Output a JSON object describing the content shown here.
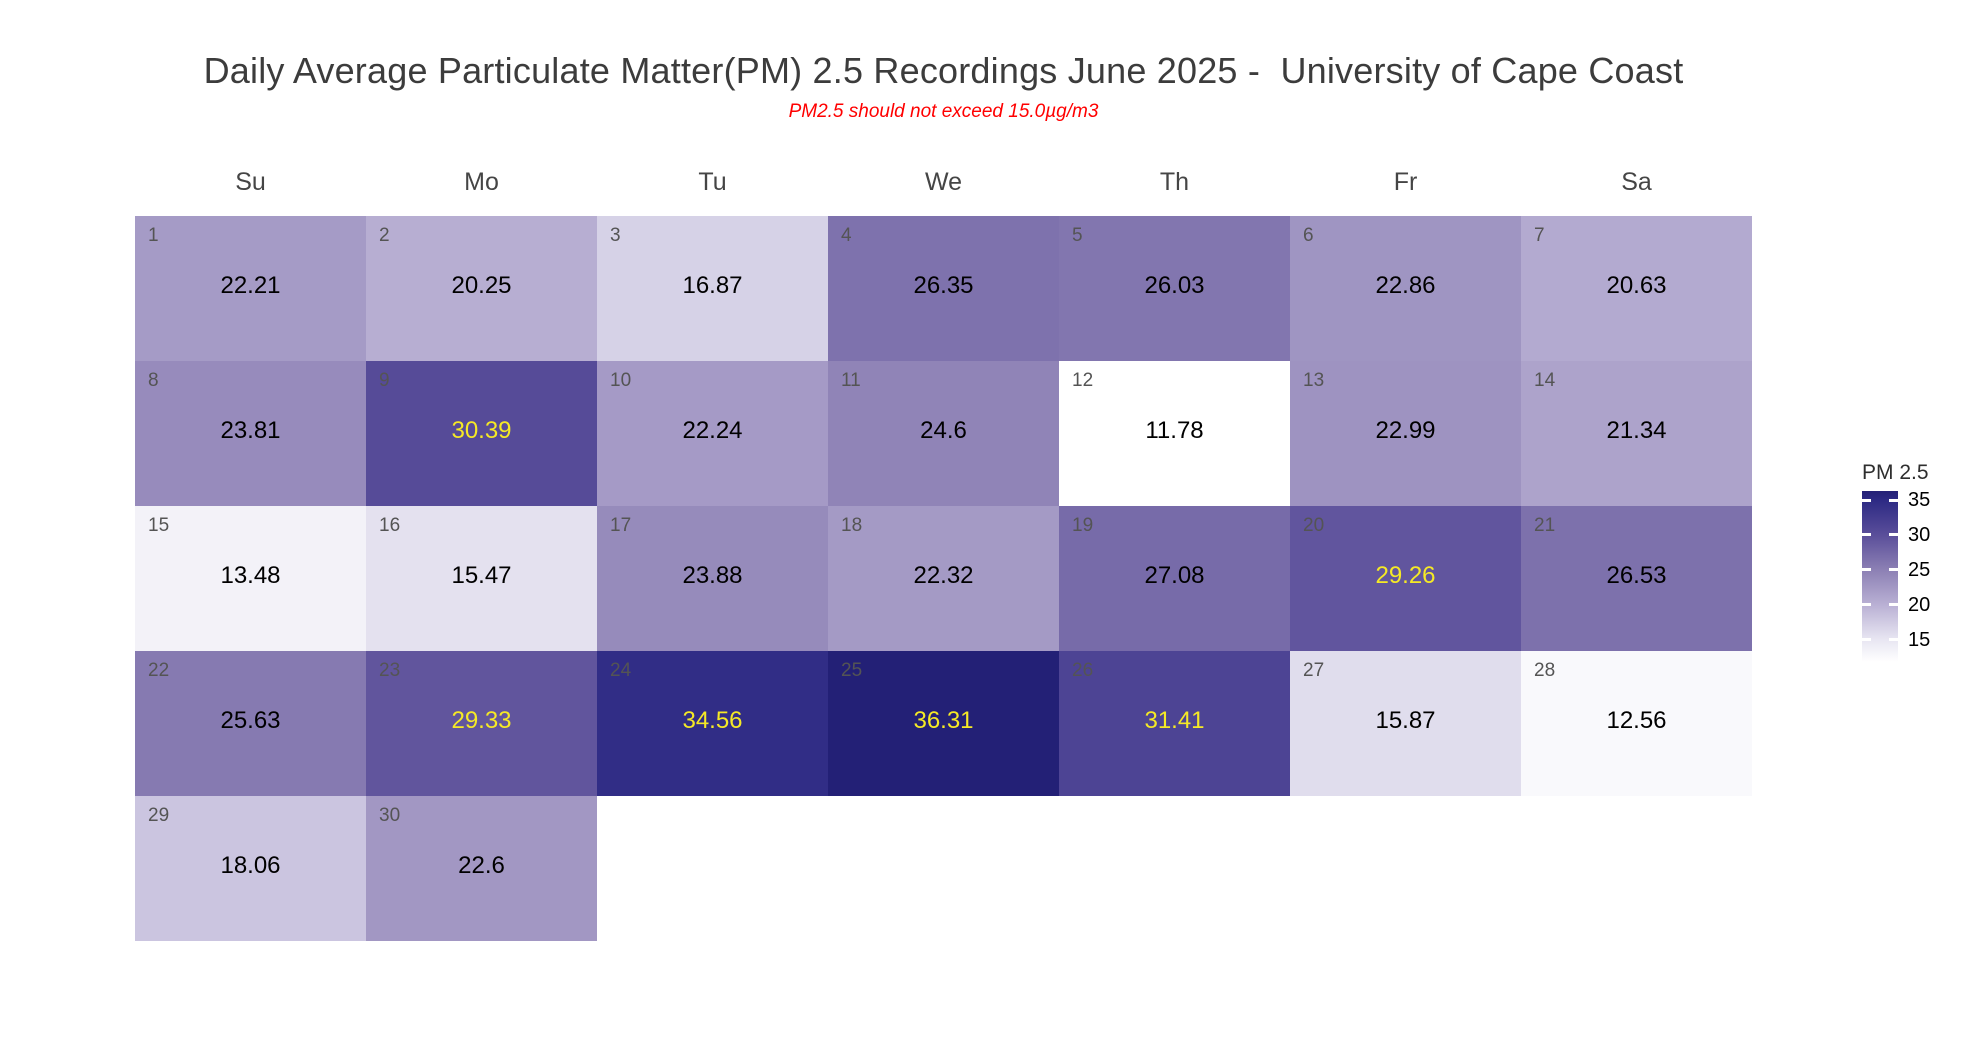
{
  "title": "Daily Average Particulate Matter(PM) 2.5 Recordings June 2025 -  University of Cape Coast",
  "subtitle": "PM2.5 should not exceed 15.0µg/m3",
  "weekday_headers": [
    "Su",
    "Mo",
    "Tu",
    "We",
    "Th",
    "Fr",
    "Sa"
  ],
  "legend": {
    "title": "PM 2.5",
    "tick_labels": [
      "35",
      "30",
      "25",
      "20",
      "15"
    ],
    "tick_values": [
      35,
      30,
      25,
      20,
      15
    ]
  },
  "colors": {
    "background": "#ffffff",
    "title_text": "#3c3c3c",
    "subtitle_text": "#ff0000",
    "weekday_text": "#454545",
    "day_number_text": "#545454",
    "value_text": "#000000",
    "value_text_high": "#f5e926",
    "high_label_threshold": 29,
    "scale_stops": [
      {
        "value": 11.78,
        "color": "#ffffff"
      },
      {
        "value": 15.0,
        "color": "#e8e6f2"
      },
      {
        "value": 20.0,
        "color": "#b9b0d4"
      },
      {
        "value": 25.0,
        "color": "#8c80b4"
      },
      {
        "value": 30.0,
        "color": "#5a4e9a"
      },
      {
        "value": 35.0,
        "color": "#2d2a84"
      },
      {
        "value": 36.31,
        "color": "#232076"
      }
    ]
  },
  "chart_data": {
    "type": "heatmap",
    "subtype": "calendar-month",
    "month": "June 2025",
    "value_name": "PM 2.5",
    "value_range": [
      11.78,
      36.31
    ],
    "first_day_column": "Su",
    "days": [
      {
        "day": 1,
        "value": 22.21,
        "display": "22.21"
      },
      {
        "day": 2,
        "value": 20.25,
        "display": "20.25"
      },
      {
        "day": 3,
        "value": 16.87,
        "display": "16.87"
      },
      {
        "day": 4,
        "value": 26.35,
        "display": "26.35"
      },
      {
        "day": 5,
        "value": 26.03,
        "display": "26.03"
      },
      {
        "day": 6,
        "value": 22.86,
        "display": "22.86"
      },
      {
        "day": 7,
        "value": 20.63,
        "display": "20.63"
      },
      {
        "day": 8,
        "value": 23.81,
        "display": "23.81"
      },
      {
        "day": 9,
        "value": 30.39,
        "display": "30.39"
      },
      {
        "day": 10,
        "value": 22.24,
        "display": "22.24"
      },
      {
        "day": 11,
        "value": 24.6,
        "display": "24.6"
      },
      {
        "day": 12,
        "value": 11.78,
        "display": "11.78"
      },
      {
        "day": 13,
        "value": 22.99,
        "display": "22.99"
      },
      {
        "day": 14,
        "value": 21.34,
        "display": "21.34"
      },
      {
        "day": 15,
        "value": 13.48,
        "display": "13.48"
      },
      {
        "day": 16,
        "value": 15.47,
        "display": "15.47"
      },
      {
        "day": 17,
        "value": 23.88,
        "display": "23.88"
      },
      {
        "day": 18,
        "value": 22.32,
        "display": "22.32"
      },
      {
        "day": 19,
        "value": 27.08,
        "display": "27.08"
      },
      {
        "day": 20,
        "value": 29.26,
        "display": "29.26"
      },
      {
        "day": 21,
        "value": 26.53,
        "display": "26.53"
      },
      {
        "day": 22,
        "value": 25.63,
        "display": "25.63"
      },
      {
        "day": 23,
        "value": 29.33,
        "display": "29.33"
      },
      {
        "day": 24,
        "value": 34.56,
        "display": "34.56"
      },
      {
        "day": 25,
        "value": 36.31,
        "display": "36.31"
      },
      {
        "day": 26,
        "value": 31.41,
        "display": "31.41"
      },
      {
        "day": 27,
        "value": 15.87,
        "display": "15.87"
      },
      {
        "day": 28,
        "value": 12.56,
        "display": "12.56"
      },
      {
        "day": 29,
        "value": 18.06,
        "display": "18.06"
      },
      {
        "day": 30,
        "value": 22.6,
        "display": "22.6"
      }
    ]
  }
}
